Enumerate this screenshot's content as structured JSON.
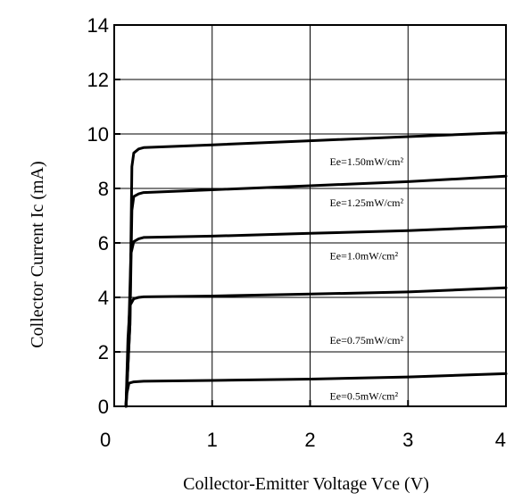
{
  "chart_data": {
    "type": "line",
    "title": "",
    "xlabel": "Collector-Emitter Voltage Vce (V)",
    "ylabel": "Collector Current Ic (mA)",
    "xlim": [
      0,
      4
    ],
    "ylim": [
      0,
      14
    ],
    "x_ticks": [
      "0",
      "1",
      "2",
      "3",
      "4"
    ],
    "y_ticks": [
      "0",
      "2",
      "4",
      "6",
      "8",
      "10",
      "12",
      "14"
    ],
    "grid": true,
    "series": [
      {
        "name": "Ee=1.50mW/cm²",
        "x": [
          0.12,
          0.16,
          0.18,
          0.2,
          0.25,
          0.3,
          1,
          2,
          3,
          4
        ],
        "y": [
          0,
          3,
          8.8,
          9.3,
          9.45,
          9.5,
          9.6,
          9.75,
          9.9,
          10.05
        ]
      },
      {
        "name": "Ee=1.25mW/cm²",
        "x": [
          0.12,
          0.16,
          0.18,
          0.2,
          0.25,
          0.3,
          1,
          2,
          3,
          4
        ],
        "y": [
          0,
          3,
          7.2,
          7.7,
          7.8,
          7.85,
          7.95,
          8.1,
          8.25,
          8.45
        ]
      },
      {
        "name": "Ee=1.0mW/cm²",
        "x": [
          0.12,
          0.15,
          0.17,
          0.2,
          0.25,
          0.3,
          1,
          2,
          3,
          4
        ],
        "y": [
          0,
          3,
          5.6,
          6.05,
          6.15,
          6.2,
          6.25,
          6.35,
          6.45,
          6.6
        ]
      },
      {
        "name": "Ee=0.75mW/cm²",
        "x": [
          0.12,
          0.14,
          0.16,
          0.2,
          0.25,
          0.3,
          1,
          2,
          3,
          4
        ],
        "y": [
          0,
          2.5,
          3.7,
          3.95,
          4.0,
          4.02,
          4.05,
          4.12,
          4.2,
          4.35
        ]
      },
      {
        "name": "Ee=0.5mW/cm²",
        "x": [
          0.12,
          0.13,
          0.15,
          0.2,
          0.3,
          1,
          2,
          3,
          4
        ],
        "y": [
          0,
          0.5,
          0.85,
          0.9,
          0.92,
          0.95,
          1.0,
          1.08,
          1.2
        ]
      }
    ],
    "labels": [
      {
        "series": 0,
        "text": "Ee=1.50mW/cm²",
        "x": 2.2,
        "y": 8.85
      },
      {
        "series": 1,
        "text": "Ee=1.25mW/cm²",
        "x": 2.2,
        "y": 7.35
      },
      {
        "series": 2,
        "text": "Ee=1.0mW/cm²",
        "x": 2.2,
        "y": 5.4
      },
      {
        "series": 3,
        "text": "Ee=0.75mW/cm²",
        "x": 2.2,
        "y": 2.3
      },
      {
        "series": 4,
        "text": "Ee=0.5mW/cm²",
        "x": 2.2,
        "y": 0.25
      }
    ]
  }
}
